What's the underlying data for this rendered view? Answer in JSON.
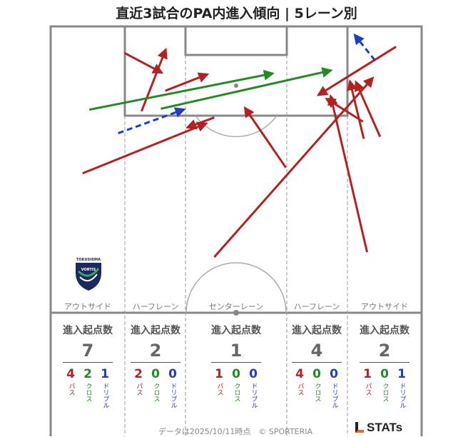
{
  "title": "直近3試合のPA内進入傾向 | 5レーン別",
  "colors": {
    "pass": "#b22222",
    "cross": "#228b22",
    "dribble": "#1f3fbf",
    "line": "#888888"
  },
  "lanes": [
    {
      "name": "アウトサイド",
      "header": "進入起点数",
      "total": "7",
      "pass": "4",
      "cross": "2",
      "dribble": "1"
    },
    {
      "name": "ハーフレーン",
      "header": "進入起点数",
      "total": "2",
      "pass": "2",
      "cross": "0",
      "dribble": "0"
    },
    {
      "name": "センターレーン",
      "header": "進入起点数",
      "total": "1",
      "pass": "1",
      "cross": "0",
      "dribble": "0"
    },
    {
      "name": "ハーフレーン",
      "header": "進入起点数",
      "total": "4",
      "pass": "4",
      "cross": "0",
      "dribble": "0"
    },
    {
      "name": "アウトサイド",
      "header": "進入起点数",
      "total": "2",
      "pass": "1",
      "cross": "0",
      "dribble": "1"
    }
  ],
  "stat_labels": {
    "pass": "パス",
    "cross": "クロス",
    "dribble": "ドリブル"
  },
  "logo": {
    "text1": "TOKUSHIMA",
    "text2": "VORTIS"
  },
  "footer": "データは2025/10/11時点　© SPORTERIA",
  "brand": "STATs",
  "chart_data": {
    "type": "scatter",
    "title": "直近3試合のPA内進入傾向 | 5レーン別",
    "arrows": [
      {
        "kind": "pass",
        "from": [
          0.086,
          0.637
        ],
        "to": [
          0.419,
          0.421
        ]
      },
      {
        "kind": "pass",
        "from": [
          0.199,
          0.115
        ],
        "to": [
          0.299,
          0.2
        ]
      },
      {
        "kind": "pass",
        "from": [
          0.245,
          0.368
        ],
        "to": [
          0.31,
          0.101
        ]
      },
      {
        "kind": "pass",
        "from": [
          0.309,
          0.279
        ],
        "to": [
          0.422,
          0.208
        ]
      },
      {
        "kind": "pass",
        "from": [
          0.441,
          0.395
        ],
        "to": [
          0.369,
          0.438
        ]
      },
      {
        "kind": "pass",
        "from": [
          0.634,
          0.612
        ],
        "to": [
          0.524,
          0.354
        ]
      },
      {
        "kind": "pass",
        "from": [
          0.441,
          1.0
        ],
        "to": [
          0.868,
          0.224
        ]
      },
      {
        "kind": "pass",
        "from": [
          0.853,
          0.979
        ],
        "to": [
          0.755,
          0.303
        ]
      },
      {
        "kind": "pass",
        "from": [
          0.931,
          0.088
        ],
        "to": [
          0.722,
          0.297
        ]
      },
      {
        "kind": "pass",
        "from": [
          0.842,
          0.413
        ],
        "to": [
          0.744,
          0.314
        ]
      },
      {
        "kind": "pass",
        "from": [
          0.844,
          0.487
        ],
        "to": [
          0.807,
          0.239
        ]
      },
      {
        "kind": "pass",
        "from": [
          0.888,
          0.478
        ],
        "to": [
          0.823,
          0.242
        ]
      },
      {
        "kind": "cross",
        "from": [
          0.104,
          0.361
        ],
        "to": [
          0.598,
          0.204
        ]
      },
      {
        "kind": "cross",
        "from": [
          0.297,
          0.357
        ],
        "to": [
          0.755,
          0.191
        ]
      },
      {
        "kind": "dribble",
        "from": [
          0.182,
          0.463
        ],
        "to": [
          0.359,
          0.36
        ]
      },
      {
        "kind": "dribble",
        "from": [
          0.874,
          0.147
        ],
        "to": [
          0.82,
          0.038
        ]
      }
    ],
    "lane_counts": [
      {
        "lane": "アウトサイド",
        "total": 7,
        "pass": 4,
        "cross": 2,
        "dribble": 1
      },
      {
        "lane": "ハーフレーン",
        "total": 2,
        "pass": 2,
        "cross": 0,
        "dribble": 0
      },
      {
        "lane": "センターレーン",
        "total": 1,
        "pass": 1,
        "cross": 0,
        "dribble": 0
      },
      {
        "lane": "ハーフレーン",
        "total": 4,
        "pass": 4,
        "cross": 0,
        "dribble": 0
      },
      {
        "lane": "アウトサイド",
        "total": 2,
        "pass": 1,
        "cross": 0,
        "dribble": 1
      }
    ]
  }
}
